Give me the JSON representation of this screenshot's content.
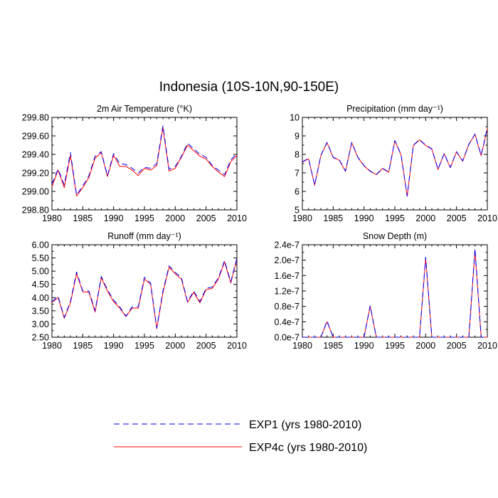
{
  "figure": {
    "title": "Indonesia (10S-10N,90-150E)"
  },
  "legend": {
    "entries": [
      {
        "label": "EXP1 (yrs 1980-2010)",
        "color": "#0000ff",
        "style": "dashed"
      },
      {
        "label": "EXP4c (yrs 1980-2010)",
        "color": "#ff0000",
        "style": "solid"
      }
    ]
  },
  "chart_data": [
    {
      "type": "line",
      "title": "2m Air Temperature (°K)",
      "xlabel": "",
      "ylabel": "",
      "xlim": [
        1980,
        2010
      ],
      "ylim": [
        298.8,
        299.8
      ],
      "xticks": [
        1980,
        1985,
        1990,
        1995,
        2000,
        2005,
        2010
      ],
      "xtick_labels": [
        "1980",
        "1985",
        "1990",
        "1995",
        "2000",
        "2005",
        "2010"
      ],
      "yticks": [
        298.8,
        299.0,
        299.2,
        299.4,
        299.6,
        299.8
      ],
      "ytick_labels": [
        "298.80",
        "299.00",
        "299.20",
        "299.40",
        "299.60",
        "299.80"
      ],
      "grid": false,
      "x": [
        1980,
        1981,
        1982,
        1983,
        1984,
        1985,
        1986,
        1987,
        1988,
        1989,
        1990,
        1991,
        1992,
        1993,
        1994,
        1995,
        1996,
        1997,
        1998,
        1999,
        2000,
        2001,
        2002,
        2003,
        2004,
        2005,
        2006,
        2007,
        2008,
        2009,
        2010
      ],
      "series": [
        {
          "name": "EXP1 (yrs 1980-2010)",
          "color": "#0000ff",
          "style": "dashed",
          "values": [
            299.08,
            299.24,
            299.07,
            299.42,
            298.96,
            299.06,
            299.17,
            299.38,
            299.43,
            299.17,
            299.41,
            299.3,
            299.29,
            299.25,
            299.2,
            299.26,
            299.25,
            299.3,
            299.71,
            299.24,
            299.27,
            299.38,
            299.52,
            299.46,
            299.4,
            299.37,
            299.28,
            299.23,
            299.18,
            299.34,
            299.41
          ]
        },
        {
          "name": "EXP4c (yrs 1980-2010)",
          "color": "#ff0000",
          "style": "solid",
          "values": [
            299.05,
            299.23,
            299.04,
            299.39,
            298.95,
            299.04,
            299.15,
            299.36,
            299.42,
            299.16,
            299.39,
            299.27,
            299.27,
            299.23,
            299.17,
            299.25,
            299.23,
            299.28,
            299.69,
            299.22,
            299.25,
            299.37,
            299.5,
            299.44,
            299.38,
            299.35,
            299.27,
            299.21,
            299.16,
            299.32,
            299.39
          ]
        }
      ]
    },
    {
      "type": "line",
      "title": "Precipitation (mm day⁻¹)",
      "xlabel": "",
      "ylabel": "",
      "xlim": [
        1980,
        2010
      ],
      "ylim": [
        5,
        10
      ],
      "xticks": [
        1980,
        1985,
        1990,
        1995,
        2000,
        2005,
        2010
      ],
      "xtick_labels": [
        "1980",
        "1985",
        "1990",
        "1995",
        "2000",
        "2005",
        "2010"
      ],
      "yticks": [
        5,
        6,
        7,
        8,
        9,
        10
      ],
      "ytick_labels": [
        "5",
        "6",
        "7",
        "8",
        "9",
        "10"
      ],
      "grid": false,
      "x": [
        1980,
        1981,
        1982,
        1983,
        1984,
        1985,
        1986,
        1987,
        1988,
        1989,
        1990,
        1991,
        1992,
        1993,
        1994,
        1995,
        1996,
        1997,
        1998,
        1999,
        2000,
        2001,
        2002,
        2003,
        2004,
        2005,
        2006,
        2007,
        2008,
        2009,
        2010
      ],
      "series": [
        {
          "name": "EXP1 (yrs 1980-2010)",
          "color": "#0000ff",
          "style": "dashed",
          "values": [
            7.6,
            7.78,
            6.35,
            7.95,
            8.65,
            7.85,
            7.7,
            7.1,
            8.65,
            7.85,
            7.4,
            7.1,
            6.92,
            7.25,
            7.05,
            8.75,
            8.0,
            5.75,
            8.5,
            8.8,
            8.5,
            8.3,
            7.2,
            8.05,
            7.3,
            8.15,
            7.65,
            8.55,
            9.1,
            7.95,
            9.45
          ]
        },
        {
          "name": "EXP4c (yrs 1980-2010)",
          "color": "#ff0000",
          "style": "solid",
          "values": [
            7.58,
            7.76,
            6.33,
            7.93,
            8.63,
            7.83,
            7.68,
            7.08,
            8.63,
            7.83,
            7.38,
            7.08,
            6.9,
            7.23,
            7.03,
            8.73,
            7.98,
            5.73,
            8.48,
            8.78,
            8.48,
            8.28,
            7.18,
            8.03,
            7.28,
            8.13,
            7.63,
            8.53,
            9.08,
            7.93,
            9.4
          ]
        }
      ]
    },
    {
      "type": "line",
      "title": "Runoff (mm day⁻¹)",
      "xlabel": "",
      "ylabel": "",
      "xlim": [
        1980,
        2010
      ],
      "ylim": [
        2.5,
        6.0
      ],
      "xticks": [
        1980,
        1985,
        1990,
        1995,
        2000,
        2005,
        2010
      ],
      "xtick_labels": [
        "1980",
        "1985",
        "1990",
        "1995",
        "2000",
        "2005",
        "2010"
      ],
      "yticks": [
        2.5,
        3.0,
        3.5,
        4.0,
        4.5,
        5.0,
        5.5,
        6.0
      ],
      "ytick_labels": [
        "2.50",
        "3.00",
        "3.50",
        "4.00",
        "4.50",
        "5.00",
        "5.50",
        "6.00"
      ],
      "grid": false,
      "x": [
        1980,
        1981,
        1982,
        1983,
        1984,
        1985,
        1986,
        1987,
        1988,
        1989,
        1990,
        1991,
        1992,
        1993,
        1994,
        1995,
        1996,
        1997,
        1998,
        1999,
        2000,
        2001,
        2002,
        2003,
        2004,
        2005,
        2006,
        2007,
        2008,
        2009,
        2010
      ],
      "series": [
        {
          "name": "EXP1 (yrs 1980-2010)",
          "color": "#0000ff",
          "style": "dashed",
          "values": [
            3.85,
            4.05,
            3.25,
            3.85,
            4.97,
            4.25,
            4.25,
            3.5,
            4.8,
            4.3,
            3.9,
            3.65,
            3.3,
            3.65,
            3.65,
            4.77,
            4.55,
            2.85,
            4.25,
            5.2,
            4.95,
            4.75,
            3.85,
            4.25,
            3.85,
            4.35,
            4.4,
            4.75,
            5.4,
            4.6,
            5.5
          ]
        },
        {
          "name": "EXP4c (yrs 1980-2010)",
          "color": "#ff0000",
          "style": "solid",
          "values": [
            3.82,
            4.0,
            3.22,
            3.8,
            4.9,
            4.22,
            4.2,
            3.45,
            4.75,
            4.25,
            3.85,
            3.6,
            3.28,
            3.6,
            3.6,
            4.7,
            4.5,
            2.82,
            4.18,
            5.15,
            4.9,
            4.7,
            3.82,
            4.2,
            3.8,
            4.3,
            4.35,
            4.7,
            5.35,
            4.55,
            5.45
          ]
        }
      ]
    },
    {
      "type": "line",
      "title": "Snow Depth (m)",
      "xlabel": "",
      "ylabel": "",
      "xlim": [
        1980,
        2010
      ],
      "ylim": [
        0,
        2.4e-07
      ],
      "xticks": [
        1980,
        1985,
        1990,
        1995,
        2000,
        2005,
        2010
      ],
      "xtick_labels": [
        "1980",
        "1985",
        "1990",
        "1995",
        "2000",
        "2005",
        "2010"
      ],
      "yticks": [
        0,
        4e-08,
        8e-08,
        1.2e-07,
        1.6e-07,
        2e-07,
        2.4e-07
      ],
      "ytick_labels": [
        "0.0e-7",
        "0.4e-7",
        "0.8e-7",
        "1.2e-7",
        "1.6e-7",
        "2.0e-7",
        "2.4e-7"
      ],
      "grid": false,
      "x": [
        1980,
        1981,
        1982,
        1983,
        1984,
        1985,
        1986,
        1987,
        1988,
        1989,
        1990,
        1991,
        1992,
        1993,
        1994,
        1995,
        1996,
        1997,
        1998,
        1999,
        2000,
        2001,
        2002,
        2003,
        2004,
        2005,
        2006,
        2007,
        2008,
        2009,
        2010
      ],
      "series": [
        {
          "name": "EXP1 (yrs 1980-2010)",
          "color": "#0000ff",
          "style": "dashed",
          "values": [
            0,
            0,
            0,
            0,
            4.2e-08,
            0,
            0,
            0,
            0,
            0,
            0,
            8.2e-08,
            0,
            0,
            0,
            0,
            0,
            0,
            0,
            0,
            2.08e-07,
            0,
            0,
            0,
            0,
            0,
            0,
            0,
            2.3e-07,
            0,
            0
          ]
        },
        {
          "name": "EXP4c (yrs 1980-2010)",
          "color": "#ff0000",
          "style": "solid",
          "values": [
            0,
            0,
            0,
            0,
            4e-08,
            0,
            0,
            0,
            0,
            0,
            0,
            8e-08,
            0,
            0,
            0,
            0,
            0,
            0,
            0,
            0,
            2.05e-07,
            0,
            0,
            0,
            0,
            0,
            0,
            0,
            2.25e-07,
            0,
            0
          ]
        }
      ]
    }
  ]
}
